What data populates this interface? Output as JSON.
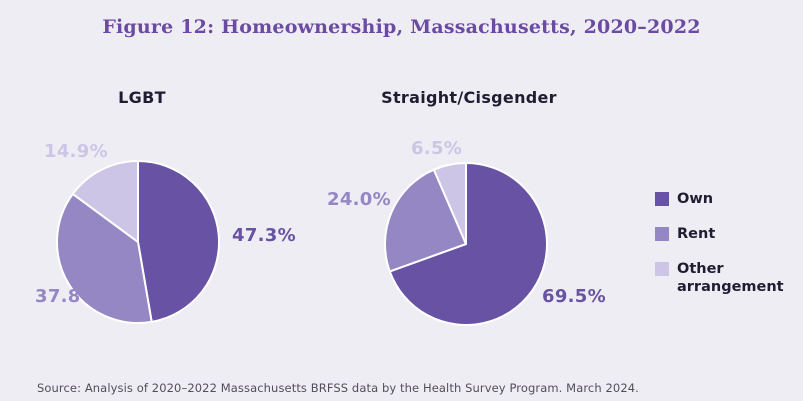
{
  "page": {
    "title": "Figure 12: Homeownership, Massachusetts, 2020–2022",
    "source": "Source: Analysis of 2020–2022 Massachusetts BRFSS data by the Health Survey Program. March 2024."
  },
  "colors": {
    "background": "#efedf4",
    "title": "#6b4aa2",
    "own": "#6852a3",
    "rent": "#9586c4",
    "other": "#cdc5e6",
    "heading": "#201d32",
    "source_text": "#524d5c",
    "slice_divider": "#ffffff"
  },
  "legend": {
    "position": "right",
    "items": [
      {
        "label": "Own",
        "color_key": "own"
      },
      {
        "label": "Rent",
        "color_key": "rent"
      },
      {
        "label": "Other arrangement",
        "color_key": "other"
      }
    ]
  },
  "chart_data": [
    {
      "type": "pie",
      "title": "LGBT",
      "labels": [
        "Own",
        "Rent",
        "Other arrangement"
      ],
      "values": [
        47.3,
        37.8,
        14.9
      ],
      "display_labels": [
        "47.3%",
        "37.8%",
        "14.9%"
      ],
      "color_keys": [
        "own",
        "rent",
        "other"
      ],
      "start_angle_deg": 0,
      "direction": "clockwise"
    },
    {
      "type": "pie",
      "title": "Straight/Cisgender",
      "labels": [
        "Own",
        "Rent",
        "Other arrangement"
      ],
      "values": [
        69.5,
        24.0,
        6.5
      ],
      "display_labels": [
        "69.5%",
        "24.0%",
        "6.5%"
      ],
      "color_keys": [
        "own",
        "rent",
        "other"
      ],
      "start_angle_deg": 0,
      "direction": "clockwise"
    }
  ]
}
